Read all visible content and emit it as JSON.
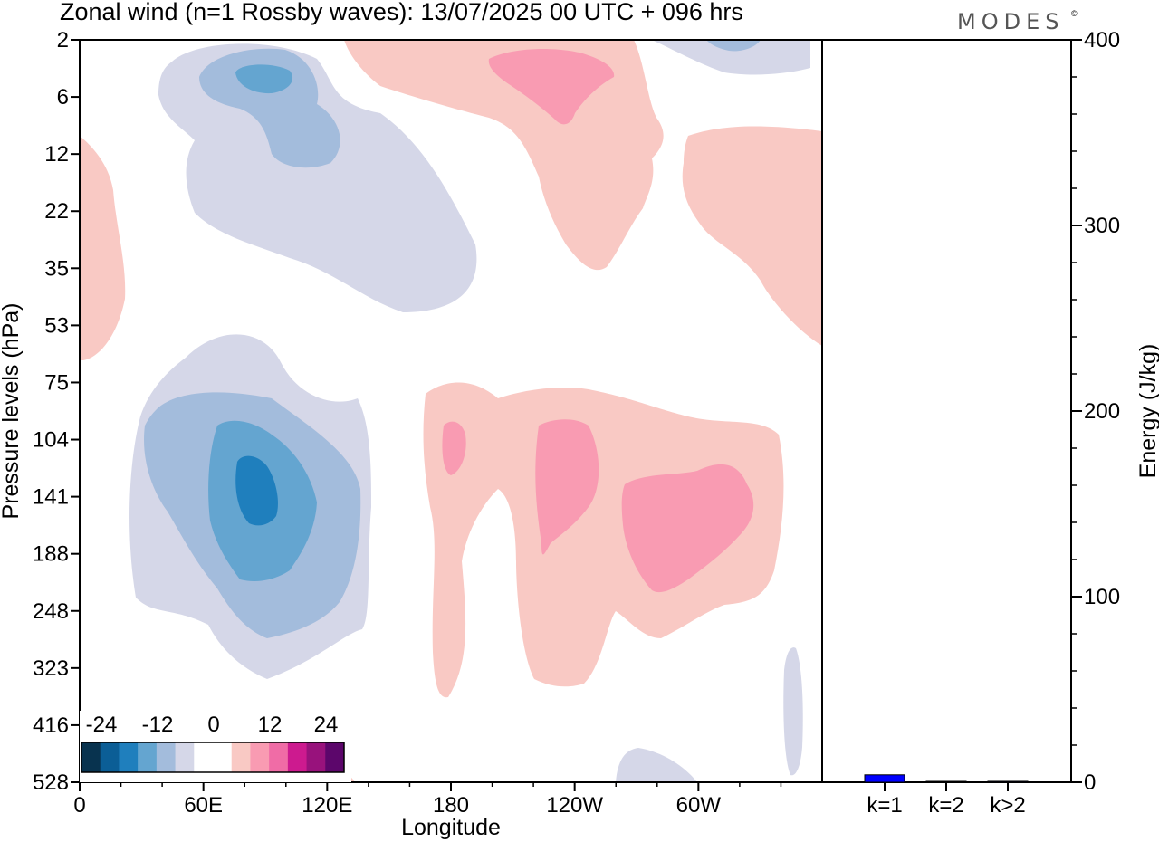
{
  "title": "Zonal wind (n=1 Rossby waves):  13/07/2025  00 UTC  + 096 hrs",
  "brand": "MODES",
  "brand_mark": "©",
  "colors": {
    "neg": [
      "#08334f",
      "#0b5e96",
      "#1f7fbd",
      "#64a5d0",
      "#a3bcdc",
      "#d5d7e8"
    ],
    "zero": "#ffffff",
    "pos": [
      "#f9c9c4",
      "#f99bb2",
      "#f06ca6",
      "#cd1a8f",
      "#98127c",
      "#5c066b"
    ],
    "bar": "#0000ff"
  },
  "colorbar": {
    "labels": [
      "-24",
      "-12",
      "0",
      "12",
      "24"
    ]
  },
  "chart_data": [
    {
      "type": "heatmap",
      "title": "Zonal wind (n=1 Rossby waves):  13/07/2025  00 UTC  + 096 hrs",
      "xlabel": "Longitude",
      "ylabel": "Pressure levels (hPa)",
      "x_ticks": [
        "0",
        "60E",
        "120E",
        "180",
        "120W",
        "60W"
      ],
      "y_ticks": [
        "528",
        "416",
        "323",
        "248",
        "188",
        "141",
        "104",
        "75",
        "53",
        "35",
        "22",
        "12",
        "6",
        "2"
      ],
      "colorbar_levels": [
        -24,
        -12,
        0,
        12,
        24
      ],
      "features": [
        {
          "sign": "negative",
          "longitude": 80,
          "pressure_hPa": 141,
          "peak": -16
        },
        {
          "sign": "negative",
          "longitude": 45,
          "pressure_hPa": 5,
          "peak": -12
        },
        {
          "sign": "positive",
          "longitude": -110,
          "pressure_hPa": 141,
          "peak": 10
        },
        {
          "sign": "positive",
          "longitude": -150,
          "pressure_hPa": 141,
          "peak": 8
        },
        {
          "sign": "positive",
          "longitude": 170,
          "pressure_hPa": 5,
          "peak": 8
        }
      ]
    },
    {
      "type": "bar",
      "ylabel": "Energy (J/kg)",
      "categories": [
        "k=1",
        "k=2",
        "k>2"
      ],
      "values": [
        4,
        0.4,
        0.5
      ],
      "ylim": [
        0,
        400
      ],
      "y_ticks": [
        "0",
        "100",
        "200",
        "300",
        "400"
      ]
    }
  ]
}
